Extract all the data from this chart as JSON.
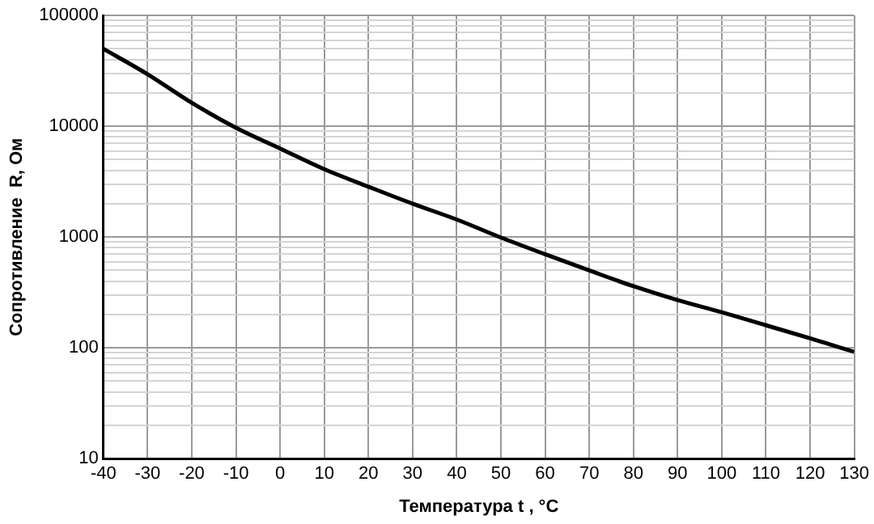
{
  "chart_data": {
    "type": "line",
    "xlabel": "Температура t , °С",
    "ylabel": "Сопротивление  R, Ом",
    "x": [
      -40,
      -30,
      -20,
      -10,
      0,
      10,
      20,
      30,
      40,
      50,
      60,
      70,
      80,
      90,
      100,
      110,
      120,
      130
    ],
    "series": [
      {
        "color": "#000000",
        "values": [
          50000,
          29500,
          16300,
          9700,
          6300,
          4100,
          2850,
          2000,
          1440,
          990,
          700,
          500,
          360,
          270,
          210,
          160,
          122,
          92
        ]
      }
    ],
    "xlim": [
      -40,
      130
    ],
    "xticks": [
      -40,
      -30,
      -20,
      -10,
      0,
      10,
      20,
      30,
      40,
      50,
      60,
      70,
      80,
      90,
      100,
      110,
      120,
      130
    ],
    "ylim": [
      10,
      100000
    ],
    "yticks": [
      10,
      {
        "value": 20,
        "label": null
      },
      {
        "value": 30,
        "label": null
      },
      {
        "value": 40,
        "label": null
      },
      {
        "value": 50,
        "label": null
      },
      {
        "value": 60,
        "label": null
      },
      {
        "value": 70,
        "label": null
      },
      {
        "value": 80,
        "label": null
      },
      {
        "value": 90,
        "label": null
      },
      100,
      {
        "value": 200,
        "label": null
      },
      {
        "value": 300,
        "label": null
      },
      {
        "value": 400,
        "label": null
      },
      {
        "value": 500,
        "label": null
      },
      {
        "value": 600,
        "label": null
      },
      {
        "value": 700,
        "label": null
      },
      {
        "value": 800,
        "label": null
      },
      {
        "value": 900,
        "label": null
      },
      1000,
      {
        "value": 2000,
        "label": null
      },
      {
        "value": 3000,
        "label": null
      },
      {
        "value": 4000,
        "label": null
      },
      {
        "value": 5000,
        "label": null
      },
      {
        "value": 6000,
        "label": null
      },
      {
        "value": 7000,
        "label": null
      },
      {
        "value": 8000,
        "label": null
      },
      {
        "value": 9000,
        "label": null
      },
      10000,
      {
        "value": 20000,
        "label": null
      },
      {
        "value": 30000,
        "label": null
      },
      {
        "value": 40000,
        "label": null
      },
      {
        "value": 50000,
        "label": null
      },
      {
        "value": 60000,
        "label": null
      },
      {
        "value": 70000,
        "label": null
      },
      {
        "value": 80000,
        "label": null
      },
      {
        "value": 90000,
        "label": null
      },
      100000
    ],
    "log": "y",
    "grid": true,
    "legend": false,
    "marker": "none",
    "line_style": "solid"
  }
}
